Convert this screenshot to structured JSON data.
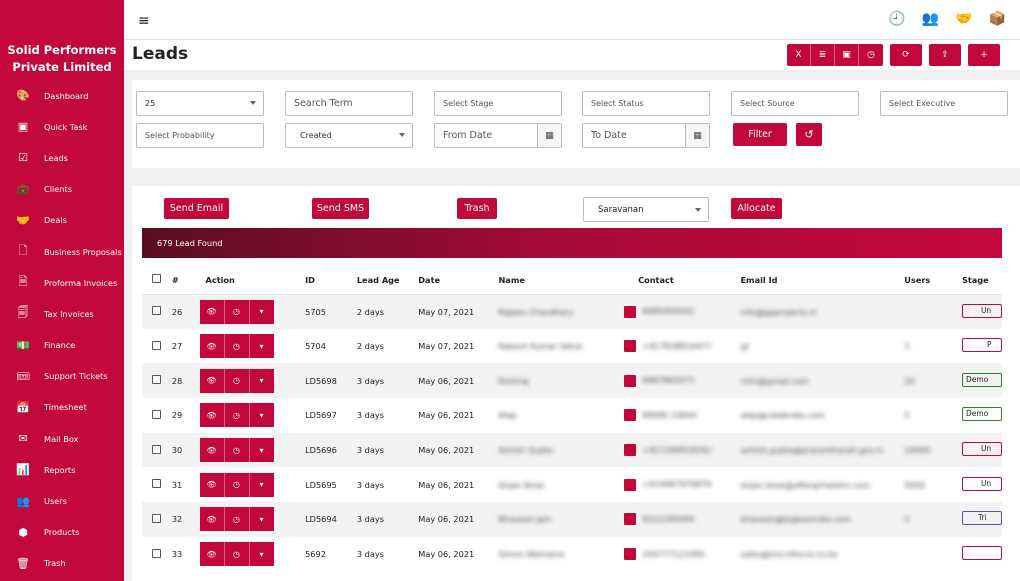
{
  "sidebar": {
    "brand_line1": "Solid Performers",
    "brand_line2": "Private Limited",
    "items": [
      {
        "label": "Dashboard",
        "icon": "palette-icon",
        "glyph": "🎨"
      },
      {
        "label": "Quick Task",
        "icon": "note-icon",
        "glyph": "▣"
      },
      {
        "label": "Leads",
        "icon": "checkbox-icon",
        "glyph": "☑"
      },
      {
        "label": "Clients",
        "icon": "briefcase-icon",
        "glyph": "💼"
      },
      {
        "label": "Deals",
        "icon": "handshake-icon",
        "glyph": "🤝"
      },
      {
        "label": "Business Proposals",
        "icon": "file-icon",
        "glyph": "🗋"
      },
      {
        "label": "Proforma Invoices",
        "icon": "file-lines-icon",
        "glyph": "🗎"
      },
      {
        "label": "Tax Invoices",
        "icon": "file-text-icon",
        "glyph": "🗐"
      },
      {
        "label": "Finance",
        "icon": "money-icon",
        "glyph": "💵"
      },
      {
        "label": "Support Tickets",
        "icon": "ticket-icon",
        "glyph": "🎟"
      },
      {
        "label": "Timesheet",
        "icon": "calendar-check-icon",
        "glyph": "📅"
      },
      {
        "label": "Mail Box",
        "icon": "envelope-icon",
        "glyph": "✉"
      },
      {
        "label": "Reports",
        "icon": "bar-chart-icon",
        "glyph": "📊"
      },
      {
        "label": "Users",
        "icon": "users-icon",
        "glyph": "👥"
      },
      {
        "label": "Products",
        "icon": "cubes-icon",
        "glyph": "⬢"
      },
      {
        "label": "Trash",
        "icon": "trash-icon",
        "glyph": "🗑"
      }
    ]
  },
  "topbar": {
    "menu_glyph": "≡",
    "icons": [
      {
        "name": "clock-icon",
        "glyph": "🕘"
      },
      {
        "name": "users-icon",
        "glyph": "👥"
      },
      {
        "name": "handshake-icon",
        "glyph": "🤝"
      },
      {
        "name": "package-icon",
        "glyph": "📦"
      }
    ]
  },
  "header": {
    "title": "Leads",
    "group_buttons": [
      {
        "name": "export-excel-button",
        "glyph": "X"
      },
      {
        "name": "list-view-button",
        "glyph": "≣"
      },
      {
        "name": "save-view-button",
        "glyph": "▣"
      },
      {
        "name": "history-button",
        "glyph": "◷"
      }
    ],
    "solo_buttons": [
      {
        "name": "refresh-button",
        "glyph": "⟳"
      },
      {
        "name": "upload-button",
        "glyph": "⇪"
      },
      {
        "name": "add-lead-button",
        "glyph": "+"
      }
    ]
  },
  "filters": {
    "page_size": "25",
    "search_placeholder": "Search Term",
    "stage_placeholder": "Select Stage",
    "status_placeholder": "Select Status",
    "source_placeholder": "Select Source",
    "executive_placeholder": "Select Executive",
    "probability_placeholder": "Select Probability",
    "date_type": "Created",
    "from_date_placeholder": "From Date",
    "to_date_placeholder": "To Date",
    "filter_label": "Filter",
    "reset_glyph": "↺",
    "calendar_glyph": "▦"
  },
  "bulk": {
    "send_email": "Send Email",
    "send_sms": "Send SMS",
    "trash": "Trash",
    "executive": "Saravanan",
    "allocate": "Allocate"
  },
  "banner": "679 Lead Found",
  "table": {
    "headers": [
      "#",
      "Action",
      "ID",
      "Lead Age",
      "Date",
      "Name",
      "Contact",
      "Email Id",
      "Users",
      "Stage"
    ],
    "action_glyphs": [
      "👁",
      "◷",
      "▾"
    ],
    "rows": [
      {
        "n": "26",
        "id": "5705",
        "age": "2 days",
        "date": "May 07, 2021",
        "name": "Rajeev Chaudhary",
        "contact": "9485405042",
        "email": "info@gpprojects.in",
        "users": "",
        "stage": "Un",
        "stage_style": "red"
      },
      {
        "n": "27",
        "id": "5704",
        "age": "2 days",
        "date": "May 07, 2021",
        "name": "Rakesh Kumar Vatsa",
        "contact": "+917838816477",
        "email": "gt",
        "users": "3",
        "stage": "P",
        "stage_style": "p"
      },
      {
        "n": "28",
        "id": "LD5698",
        "age": "3 days",
        "date": "May 06, 2021",
        "name": "Rishiraj",
        "contact": "9987865073",
        "email": "rishi@gmail.com",
        "users": "20",
        "stage": "Demo",
        "stage_style": "green"
      },
      {
        "n": "29",
        "id": "LD5697",
        "age": "3 days",
        "date": "May 06, 2021",
        "name": "Alap",
        "contact": "99090 33644",
        "email": "alap@celebrate.com",
        "users": "5",
        "stage": "Demo",
        "stage_style": "green"
      },
      {
        "n": "30",
        "id": "LD5696",
        "age": "3 days",
        "date": "May 06, 2021",
        "name": "Ashish Gupta",
        "contact": "+917299918292",
        "email": "ashish.gupta@prasarbharati.gov.in",
        "users": "24000",
        "stage": "Un",
        "stage_style": "red"
      },
      {
        "n": "31",
        "id": "LD5695",
        "age": "3 days",
        "date": "May 06, 2021",
        "name": "Anjan Bose",
        "contact": "+919987979879",
        "email": "anjan.bose@aftergrhatelm.com",
        "users": "5000",
        "stage": "Un",
        "stage_style": "red"
      },
      {
        "n": "32",
        "id": "LD5694",
        "age": "3 days",
        "date": "May 06, 2021",
        "name": "Bhavesh Jain",
        "contact": "9222295449",
        "email": "bhavesh@bigboxindia.com",
        "users": "3",
        "stage": "Tri",
        "stage_style": "purple"
      },
      {
        "n": "33",
        "id": "5692",
        "age": "3 days",
        "date": "May 06, 2021",
        "name": "Simon Wainaina",
        "contact": "254777123395",
        "email": "sales@microforce.co.ke",
        "users": "",
        "stage": "",
        "stage_style": "red"
      }
    ]
  }
}
